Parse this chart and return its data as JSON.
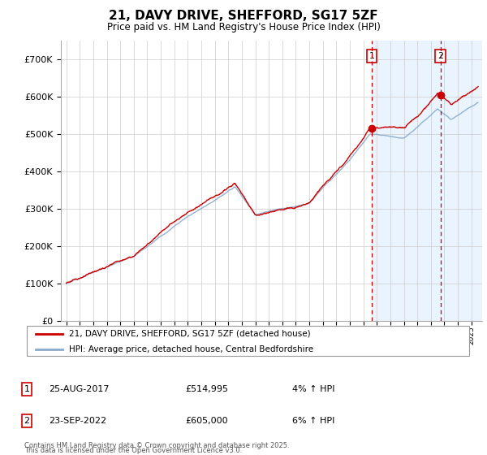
{
  "title": "21, DAVY DRIVE, SHEFFORD, SG17 5ZF",
  "subtitle": "Price paid vs. HM Land Registry's House Price Index (HPI)",
  "legend_line1": "21, DAVY DRIVE, SHEFFORD, SG17 5ZF (detached house)",
  "legend_line2": "HPI: Average price, detached house, Central Bedfordshire",
  "annotation1": {
    "label": "1",
    "date": "25-AUG-2017",
    "price": "£514,995",
    "hpi": "4% ↑ HPI"
  },
  "annotation2": {
    "label": "2",
    "date": "23-SEP-2022",
    "price": "£605,000",
    "hpi": "6% ↑ HPI"
  },
  "footer": "Contains HM Land Registry data © Crown copyright and database right 2025.\nThis data is licensed under the Open Government Licence v3.0.",
  "line_color_red": "#cc0000",
  "line_color_blue": "#88aacc",
  "vline_color": "#cc0000",
  "box_color": "#cc0000",
  "bg_shade_color": "#ddeeff",
  "ylim": [
    0,
    750000
  ],
  "yticks": [
    0,
    100000,
    200000,
    300000,
    400000,
    500000,
    600000,
    700000
  ],
  "sale1_year": 2017.625,
  "sale2_year": 2022.708,
  "sale1_price": 514995,
  "sale2_price": 605000,
  "start_year": 1995,
  "end_year": 2025.5
}
